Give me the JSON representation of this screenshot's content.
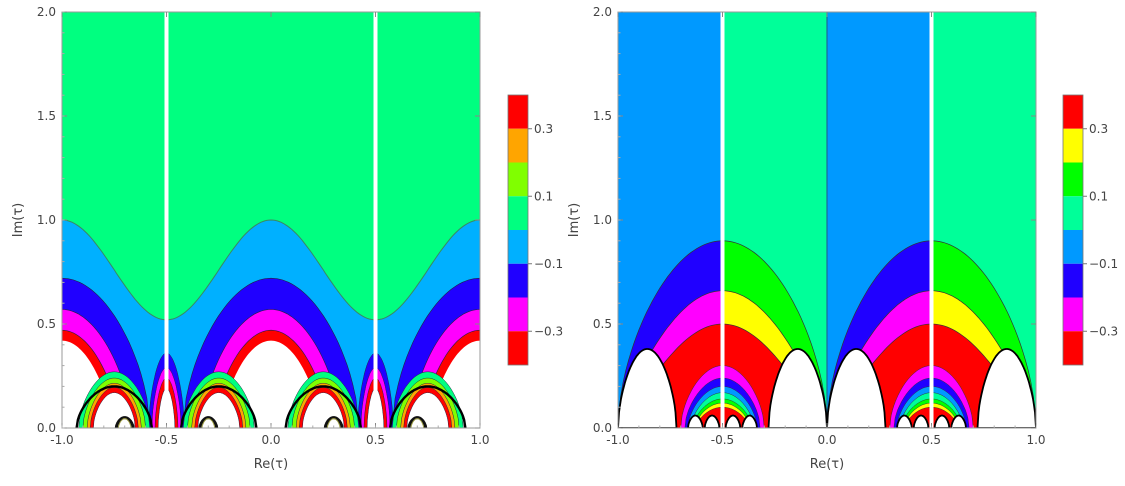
{
  "chart_data": [
    {
      "type": "heatmap",
      "title": "",
      "xlabel": "Re(τ)",
      "ylabel": "Im(τ)",
      "xlim": [
        -1.0,
        1.0
      ],
      "ylim": [
        0.0,
        2.0
      ],
      "x_ticks": [
        "-1.0",
        "-0.5",
        "0.0",
        "0.5",
        "1.0"
      ],
      "y_ticks": [
        "0.0",
        "0.5",
        "1.0",
        "1.5",
        "2.0"
      ],
      "legend_position": "right",
      "colorbar": {
        "bands": [
          "#ff0000",
          "#ffa500",
          "#80ff00",
          "#00ff80",
          "#00b0ff",
          "#2000ff",
          "#ff00ff",
          "#ff0000"
        ],
        "tick_values": [
          0.3,
          0.1,
          -0.1,
          -0.3
        ],
        "tick_labels": [
          "0.3",
          "0.1",
          "−0.1",
          "−0.3"
        ],
        "range": [
          -0.4,
          0.4
        ]
      },
      "regions": {
        "upper_value_color": "#00ff80",
        "boundary_curve_heights": {
          "outer": 1.0,
          "at_half": 0.52
        },
        "bands_at_edges": [
          {
            "color": "#00b0ff",
            "top": 1.0
          },
          {
            "color": "#2000ff",
            "top": 0.72
          },
          {
            "color": "#ff00ff",
            "top": 0.57
          },
          {
            "color": "#ff0000",
            "top": 0.47
          }
        ]
      },
      "white_gaps_at_x": [
        -0.5,
        0.5
      ]
    },
    {
      "type": "heatmap",
      "title": "",
      "xlabel": "Re(τ)",
      "ylabel": "Im(τ)",
      "xlim": [
        -1.0,
        1.0
      ],
      "ylim": [
        0.0,
        2.0
      ],
      "x_ticks": [
        "-1.0",
        "-0.5",
        "0.0",
        "0.5",
        "1.0"
      ],
      "y_ticks": [
        "0.0",
        "0.5",
        "1.0",
        "1.5",
        "2.0"
      ],
      "legend_position": "right",
      "colorbar": {
        "bands": [
          "#ff0000",
          "#ffff00",
          "#00ff00",
          "#00ff99",
          "#0099ff",
          "#2000ff",
          "#ff00ff",
          "#ff0000"
        ],
        "tick_values": [
          0.3,
          0.1,
          -0.1,
          -0.3
        ],
        "tick_labels": [
          "0.3",
          "0.1",
          "−0.1",
          "−0.3"
        ],
        "range": [
          -0.4,
          0.4
        ]
      },
      "regions": {
        "left_half_color": "#0099ff",
        "right_half_color": "#00ff99",
        "arch_peak_height": 0.9,
        "bands_left": [
          "#2000ff",
          "#ff00ff",
          "#ff0000"
        ],
        "bands_right": [
          "#00ff00",
          "#ffff00",
          "#ff0000"
        ]
      },
      "white_gaps_at_x": [
        -0.5,
        0.5
      ]
    }
  ]
}
